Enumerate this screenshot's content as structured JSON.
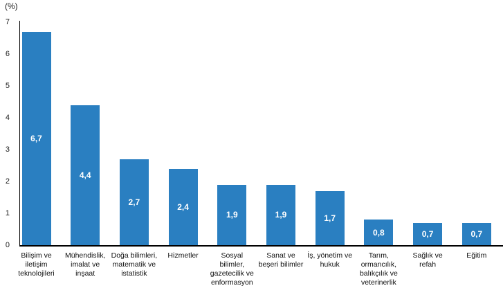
{
  "chart_data": {
    "type": "bar",
    "title": "",
    "unit_label": "(%)",
    "categories": [
      "Bilişim ve\niletişim\nteknolojileri",
      "Mühendislik,\nimalat ve\ninşaat",
      "Doğa bilimleri,\nmatematik ve\nistatistik",
      "Hizmetler",
      "Sosyal\nbilimler,\ngazetecilik ve\nenformasyon",
      "Sanat ve\nbeşeri bilimler",
      "İş, yönetim ve\nhukuk",
      "Tarım,\normancılık,\nbalıkçılık ve\nveterinerlik",
      "Sağlık ve\nrefah",
      "Eğitim"
    ],
    "values": [
      6.7,
      4.4,
      2.7,
      2.4,
      1.9,
      1.9,
      1.7,
      0.8,
      0.7,
      0.7
    ],
    "value_labels": [
      "6,7",
      "4,4",
      "2,7",
      "2,4",
      "1,9",
      "1,9",
      "1,7",
      "0,8",
      "0,7",
      "0,7"
    ],
    "xlabel": "",
    "ylabel": "",
    "ylim": [
      0,
      7
    ],
    "yticks": [
      "0",
      "1",
      "2",
      "3",
      "4",
      "5",
      "6",
      "7"
    ],
    "grid": false,
    "legend": null,
    "bar_color": "#2a7fc1",
    "value_label_color": "#ffffff",
    "axis_color": "#000000"
  }
}
